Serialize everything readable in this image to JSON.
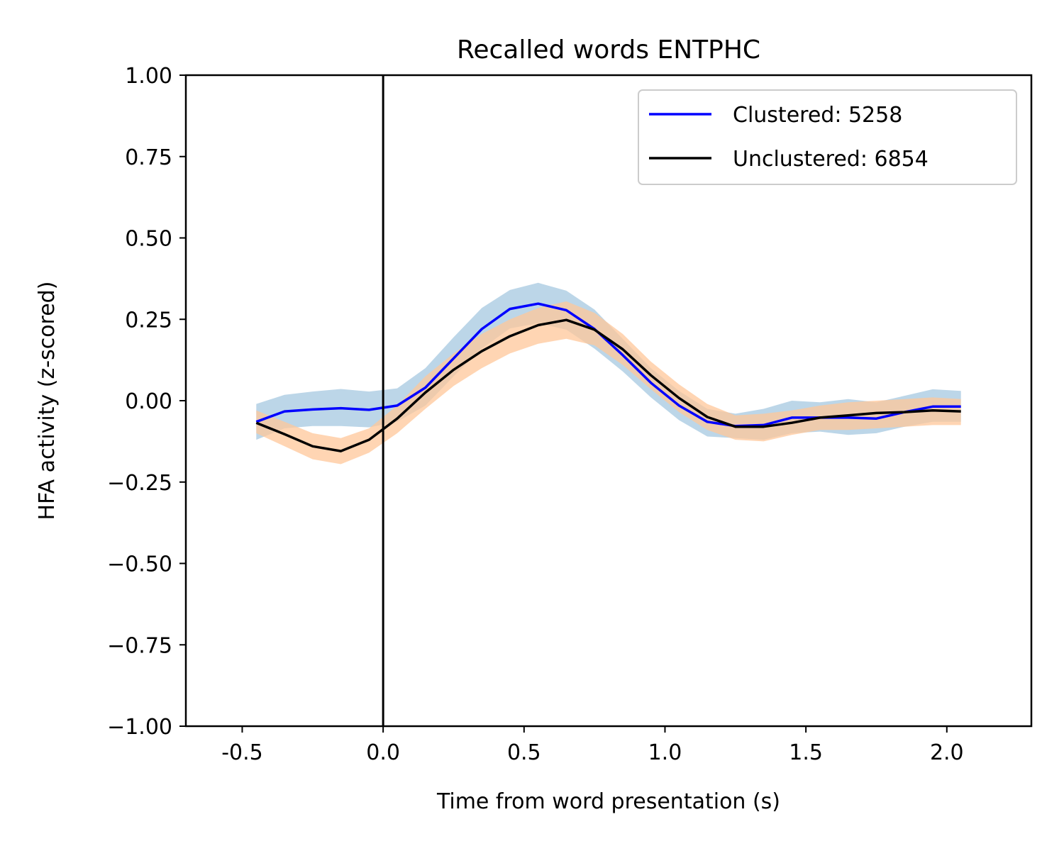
{
  "chart_data": {
    "type": "line",
    "title": "Recalled words ENTPHC",
    "xlabel": "Time from word presentation (s)",
    "ylabel": "HFA activity (z-scored)",
    "xlim": [
      -0.7,
      2.3
    ],
    "ylim": [
      -1.0,
      1.0
    ],
    "x_ticks": [
      -0.5,
      0.0,
      0.5,
      1.0,
      1.5,
      2.0
    ],
    "x_tick_labels": [
      "-0.5",
      "0.0",
      "0.5",
      "1.0",
      "1.5",
      "2.0"
    ],
    "y_ticks": [
      1.0,
      0.75,
      0.5,
      0.25,
      0.0,
      -0.25,
      -0.5,
      -0.75,
      -1.0
    ],
    "y_tick_labels": [
      "1.00",
      "0.75",
      "0.50",
      "0.25",
      "0.00",
      "−0.25",
      "−0.50",
      "−0.75",
      "−1.00"
    ],
    "vline_x": 0.0,
    "grid": false,
    "legend_position": "top-right",
    "x": [
      -0.45,
      -0.35,
      -0.25,
      -0.15,
      -0.05,
      0.05,
      0.15,
      0.25,
      0.35,
      0.45,
      0.55,
      0.65,
      0.75,
      0.85,
      0.95,
      1.05,
      1.15,
      1.25,
      1.35,
      1.45,
      1.55,
      1.65,
      1.75,
      1.85,
      1.95,
      2.05
    ],
    "series": [
      {
        "name": "Clustered: 5258",
        "color": "#0000ff",
        "band_color": "#a6c8e0",
        "values": [
          -0.065,
          -0.033,
          -0.027,
          -0.023,
          -0.028,
          -0.015,
          0.04,
          0.13,
          0.22,
          0.282,
          0.298,
          0.278,
          0.22,
          0.14,
          0.055,
          -0.015,
          -0.065,
          -0.078,
          -0.075,
          -0.052,
          -0.052,
          -0.052,
          -0.055,
          -0.035,
          -0.018,
          -0.018
        ],
        "lower": [
          -0.12,
          -0.085,
          -0.078,
          -0.078,
          -0.082,
          -0.065,
          -0.015,
          0.075,
          0.16,
          0.222,
          0.238,
          0.218,
          0.16,
          0.09,
          0.01,
          -0.06,
          -0.11,
          -0.115,
          -0.12,
          -0.1,
          -0.095,
          -0.105,
          -0.1,
          -0.08,
          -0.065,
          -0.065
        ],
        "upper": [
          -0.01,
          0.018,
          0.028,
          0.036,
          0.028,
          0.038,
          0.1,
          0.195,
          0.285,
          0.34,
          0.362,
          0.338,
          0.28,
          0.19,
          0.1,
          0.03,
          -0.025,
          -0.04,
          -0.025,
          0.0,
          -0.005,
          0.005,
          -0.005,
          0.015,
          0.035,
          0.03
        ]
      },
      {
        "name": "Unclustered: 6854",
        "color": "#000000",
        "band_color": "#ffc79a",
        "values": [
          -0.068,
          -0.103,
          -0.14,
          -0.155,
          -0.12,
          -0.055,
          0.025,
          0.095,
          0.152,
          0.198,
          0.232,
          0.248,
          0.218,
          0.158,
          0.078,
          0.008,
          -0.05,
          -0.08,
          -0.08,
          -0.068,
          -0.052,
          -0.045,
          -0.038,
          -0.035,
          -0.03,
          -0.033
        ],
        "lower": [
          -0.1,
          -0.14,
          -0.18,
          -0.195,
          -0.16,
          -0.1,
          -0.025,
          0.045,
          0.1,
          0.145,
          0.175,
          0.19,
          0.17,
          0.11,
          0.035,
          -0.035,
          -0.09,
          -0.12,
          -0.125,
          -0.105,
          -0.09,
          -0.09,
          -0.085,
          -0.08,
          -0.075,
          -0.075
        ],
        "upper": [
          -0.03,
          -0.065,
          -0.1,
          -0.115,
          -0.085,
          -0.015,
          0.075,
          0.145,
          0.205,
          0.25,
          0.285,
          0.305,
          0.27,
          0.205,
          0.12,
          0.05,
          -0.01,
          -0.045,
          -0.04,
          -0.03,
          -0.015,
          -0.005,
          0.0,
          0.005,
          0.01,
          0.005
        ]
      }
    ]
  }
}
